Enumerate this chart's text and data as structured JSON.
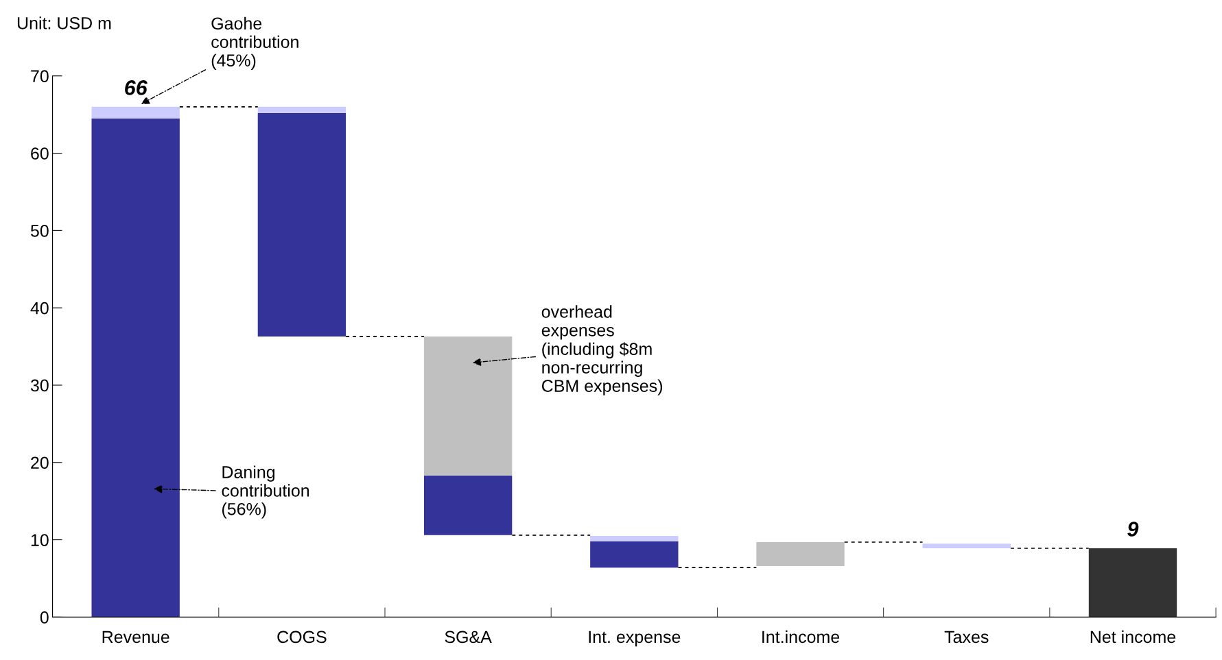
{
  "chart_data": {
    "type": "bar",
    "categories": [
      "Revenue",
      "COGS",
      "SG&A",
      "Int. expense",
      "Int.income",
      "Taxes",
      "Net income"
    ],
    "series": [
      {
        "color": "#333399",
        "values": [
          64.5,
          28.9,
          7.7,
          3.4,
          null,
          null,
          null
        ],
        "base": [
          0,
          36.3,
          10.6,
          6.4,
          null,
          null,
          null
        ]
      },
      {
        "color": "#ccccff",
        "values": [
          1.5,
          0.8,
          null,
          0.7,
          null,
          0.6,
          null
        ],
        "base": [
          64.5,
          65.2,
          null,
          9.8,
          null,
          8.9,
          null
        ]
      },
      {
        "color": "#c0c0c0",
        "values": [
          null,
          null,
          18.0,
          null,
          3.1,
          null,
          null
        ],
        "base": [
          null,
          null,
          18.3,
          null,
          6.6,
          null,
          null
        ]
      },
      {
        "color": "#333333",
        "values": [
          null,
          null,
          null,
          null,
          null,
          null,
          8.9
        ],
        "base": [
          null,
          null,
          null,
          null,
          null,
          null,
          0
        ]
      }
    ],
    "totals": [
      "66",
      null,
      null,
      null,
      null,
      null,
      "9"
    ],
    "ylim": [
      0,
      70
    ],
    "yticks": [
      0,
      10,
      20,
      30,
      40,
      50,
      60,
      70
    ],
    "grid": false,
    "legend": false,
    "annotations": [
      "Unit: USD m",
      "Gaohe\ncontribution\n(45%)",
      "Daning\ncontribution\n(56%)",
      "overhead\nexpenses\n(including $8m\nnon-recurring\nCBM expenses)"
    ]
  }
}
